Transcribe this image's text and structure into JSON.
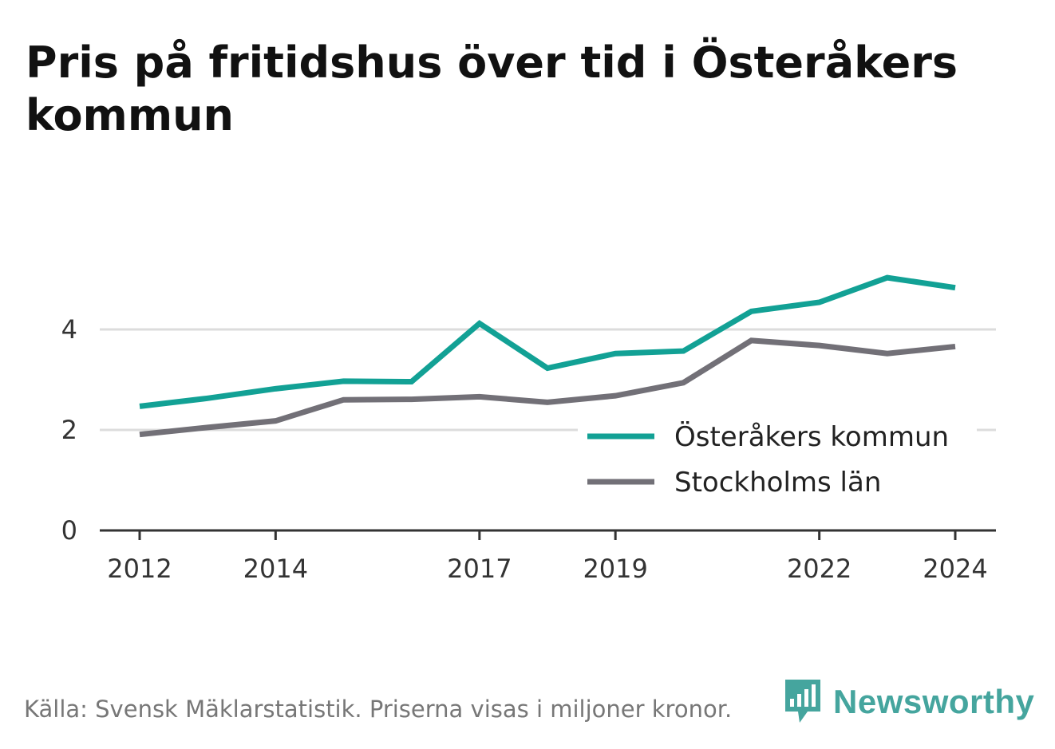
{
  "title": "Pris på fritidshus över tid i Österåkers kommun",
  "footer": "Källa: Svensk Mäklarstatistik. Priserna visas i miljoner kronor.",
  "brand": {
    "name": "Newsworthy",
    "icon": "bar-chart-speech-icon",
    "color": "#45a59e"
  },
  "chart_data": {
    "type": "line",
    "title": "Pris på fritidshus över tid i Österåkers kommun",
    "xlabel": "",
    "ylabel": "",
    "x": [
      2012,
      2013,
      2014,
      2015,
      2016,
      2017,
      2018,
      2019,
      2020,
      2021,
      2022,
      2023,
      2024
    ],
    "x_ticks": [
      "2012",
      "2014",
      "2017",
      "2019",
      "2022",
      "2024"
    ],
    "y_ticks": [
      "0",
      "2",
      "4"
    ],
    "ylim": [
      0,
      5.3
    ],
    "grid": true,
    "legend_position": "right",
    "series": [
      {
        "name": "Österåkers kommun",
        "color": "#12a195",
        "values": [
          2.47,
          2.63,
          2.82,
          2.97,
          2.96,
          4.12,
          3.23,
          3.52,
          3.57,
          4.36,
          4.54,
          5.03,
          4.83
        ]
      },
      {
        "name": "Stockholms län",
        "color": "#727077",
        "values": [
          1.91,
          2.05,
          2.18,
          2.6,
          2.61,
          2.66,
          2.55,
          2.68,
          2.94,
          3.78,
          3.68,
          3.52,
          3.66
        ]
      }
    ]
  }
}
